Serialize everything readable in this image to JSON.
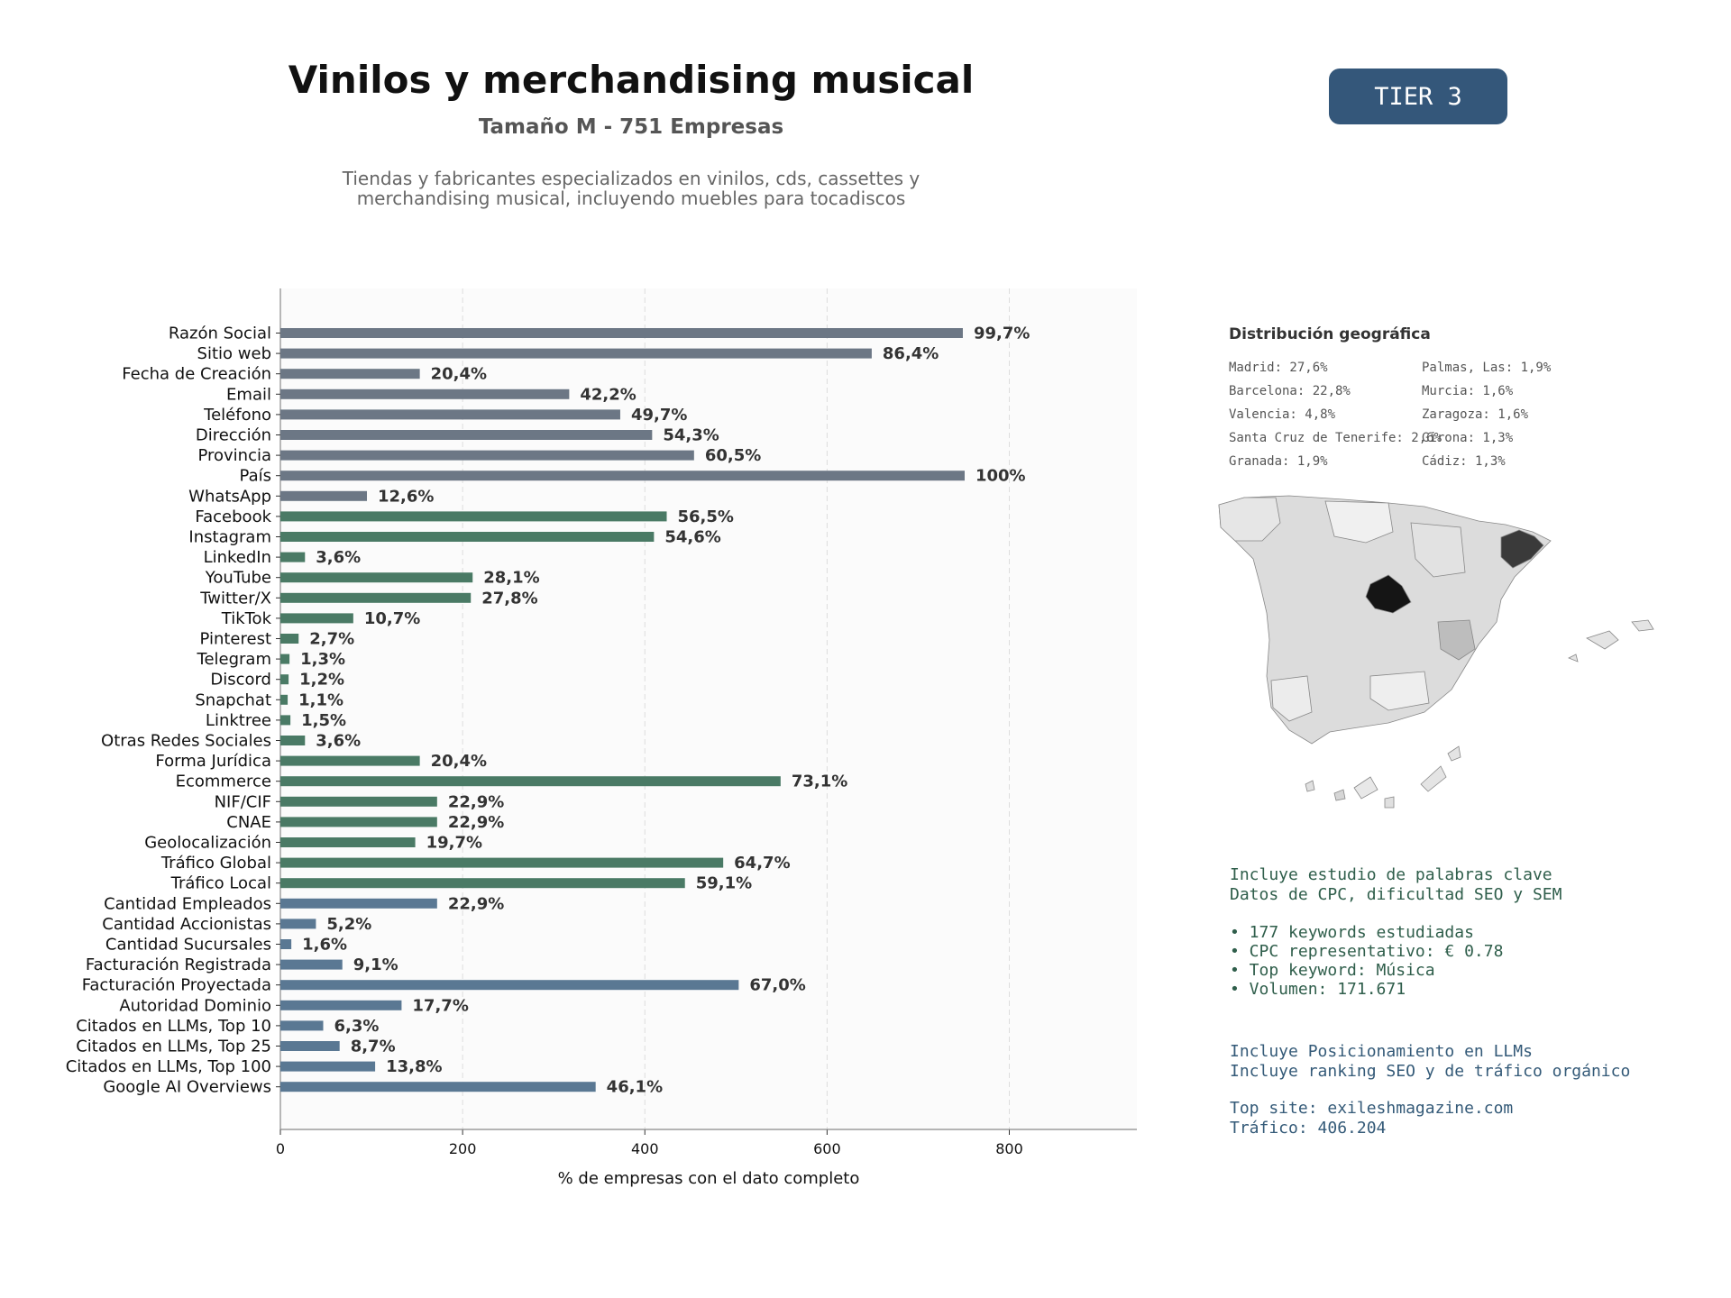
{
  "header": {
    "title": "Vinilos y merchandising musical",
    "subtitle": "Tamaño M - 751 Empresas",
    "description_line1": "Tiendas y fabricantes especializados en vinilos, cds, cassettes y",
    "description_line2": "merchandising musical, incluyendo muebles para tocadiscos",
    "tier_badge": "TIER 3"
  },
  "colors": {
    "gray": "#6c7785",
    "green": "#4a7a65",
    "blue": "#5a7893",
    "badge": "#34577a"
  },
  "chart_data": {
    "type": "bar",
    "orientation": "horizontal",
    "xlabel": "% de empresas con el dato completo",
    "xlim": [
      0,
      940
    ],
    "xticks": [
      0,
      200,
      400,
      600,
      800
    ],
    "grid": true,
    "bars": [
      {
        "label": "Razón Social",
        "value": 749,
        "pct": "99,7%",
        "group": "gray"
      },
      {
        "label": "Sitio web",
        "value": 649,
        "pct": "86,4%",
        "group": "gray"
      },
      {
        "label": "Fecha de Creación",
        "value": 153,
        "pct": "20,4%",
        "group": "gray"
      },
      {
        "label": "Email",
        "value": 317,
        "pct": "42,2%",
        "group": "gray"
      },
      {
        "label": "Teléfono",
        "value": 373,
        "pct": "49,7%",
        "group": "gray"
      },
      {
        "label": "Dirección",
        "value": 408,
        "pct": "54,3%",
        "group": "gray"
      },
      {
        "label": "Provincia",
        "value": 454,
        "pct": "60,5%",
        "group": "gray"
      },
      {
        "label": "País",
        "value": 751,
        "pct": "100%",
        "group": "gray"
      },
      {
        "label": "WhatsApp",
        "value": 95,
        "pct": "12,6%",
        "group": "gray"
      },
      {
        "label": "Facebook",
        "value": 424,
        "pct": "56,5%",
        "group": "green"
      },
      {
        "label": "Instagram",
        "value": 410,
        "pct": "54,6%",
        "group": "green"
      },
      {
        "label": "LinkedIn",
        "value": 27,
        "pct": "3,6%",
        "group": "green"
      },
      {
        "label": "YouTube",
        "value": 211,
        "pct": "28,1%",
        "group": "green"
      },
      {
        "label": "Twitter/X",
        "value": 209,
        "pct": "27,8%",
        "group": "green"
      },
      {
        "label": "TikTok",
        "value": 80,
        "pct": "10,7%",
        "group": "green"
      },
      {
        "label": "Pinterest",
        "value": 20,
        "pct": "2,7%",
        "group": "green"
      },
      {
        "label": "Telegram",
        "value": 10,
        "pct": "1,3%",
        "group": "green"
      },
      {
        "label": "Discord",
        "value": 9,
        "pct": "1,2%",
        "group": "green"
      },
      {
        "label": "Snapchat",
        "value": 8,
        "pct": "1,1%",
        "group": "green"
      },
      {
        "label": "Linktree",
        "value": 11,
        "pct": "1,5%",
        "group": "green"
      },
      {
        "label": "Otras Redes Sociales",
        "value": 27,
        "pct": "3,6%",
        "group": "green"
      },
      {
        "label": "Forma Jurídica",
        "value": 153,
        "pct": "20,4%",
        "group": "green"
      },
      {
        "label": "Ecommerce",
        "value": 549,
        "pct": "73,1%",
        "group": "green"
      },
      {
        "label": "NIF/CIF",
        "value": 172,
        "pct": "22,9%",
        "group": "green"
      },
      {
        "label": "CNAE",
        "value": 172,
        "pct": "22,9%",
        "group": "green"
      },
      {
        "label": "Geolocalización",
        "value": 148,
        "pct": "19,7%",
        "group": "green"
      },
      {
        "label": "Tráfico Global",
        "value": 486,
        "pct": "64,7%",
        "group": "green"
      },
      {
        "label": "Tráfico Local",
        "value": 444,
        "pct": "59,1%",
        "group": "green"
      },
      {
        "label": "Cantidad Empleados",
        "value": 172,
        "pct": "22,9%",
        "group": "blue"
      },
      {
        "label": "Cantidad Accionistas",
        "value": 39,
        "pct": "5,2%",
        "group": "blue"
      },
      {
        "label": "Cantidad Sucursales",
        "value": 12,
        "pct": "1,6%",
        "group": "blue"
      },
      {
        "label": "Facturación Registrada",
        "value": 68,
        "pct": "9,1%",
        "group": "blue"
      },
      {
        "label": "Facturación Proyectada",
        "value": 503,
        "pct": "67,0%",
        "group": "blue"
      },
      {
        "label": "Autoridad Dominio",
        "value": 133,
        "pct": "17,7%",
        "group": "blue"
      },
      {
        "label": "Citados en LLMs, Top 10",
        "value": 47,
        "pct": "6,3%",
        "group": "blue"
      },
      {
        "label": "Citados en LLMs, Top 25",
        "value": 65,
        "pct": "8,7%",
        "group": "blue"
      },
      {
        "label": "Citados en LLMs, Top 100",
        "value": 104,
        "pct": "13,8%",
        "group": "blue"
      },
      {
        "label": "Google AI Overviews",
        "value": 346,
        "pct": "46,1%",
        "group": "blue"
      }
    ]
  },
  "geo": {
    "title": "Distribución geográfica",
    "col1": [
      "Madrid: 27,6%",
      "Barcelona: 22,8%",
      "Valencia: 4,8%",
      "Santa Cruz de Tenerife: 2,6%",
      "Granada: 1,9%"
    ],
    "col2": [
      "Palmas, Las: 1,9%",
      "Murcia: 1,6%",
      "Zaragoza: 1,6%",
      "Girona: 1,3%",
      "Cádiz: 1,3%"
    ]
  },
  "keywords": {
    "line1": "Incluye estudio de palabras clave",
    "line2": "Datos de CPC, dificultad SEO y SEM",
    "bullet1": "• 177 keywords estudiadas",
    "bullet2": "• CPC representativo: € 0.78",
    "bullet3": "• Top keyword: Música",
    "bullet4": "• Volumen: 171.671"
  },
  "llm": {
    "line1": "Incluye Posicionamiento en LLMs",
    "line2": "Incluye ranking SEO y de tráfico orgánico",
    "top_site": "Top site: exileshmagazine.com",
    "traffic": "Tráfico: 406.204"
  }
}
